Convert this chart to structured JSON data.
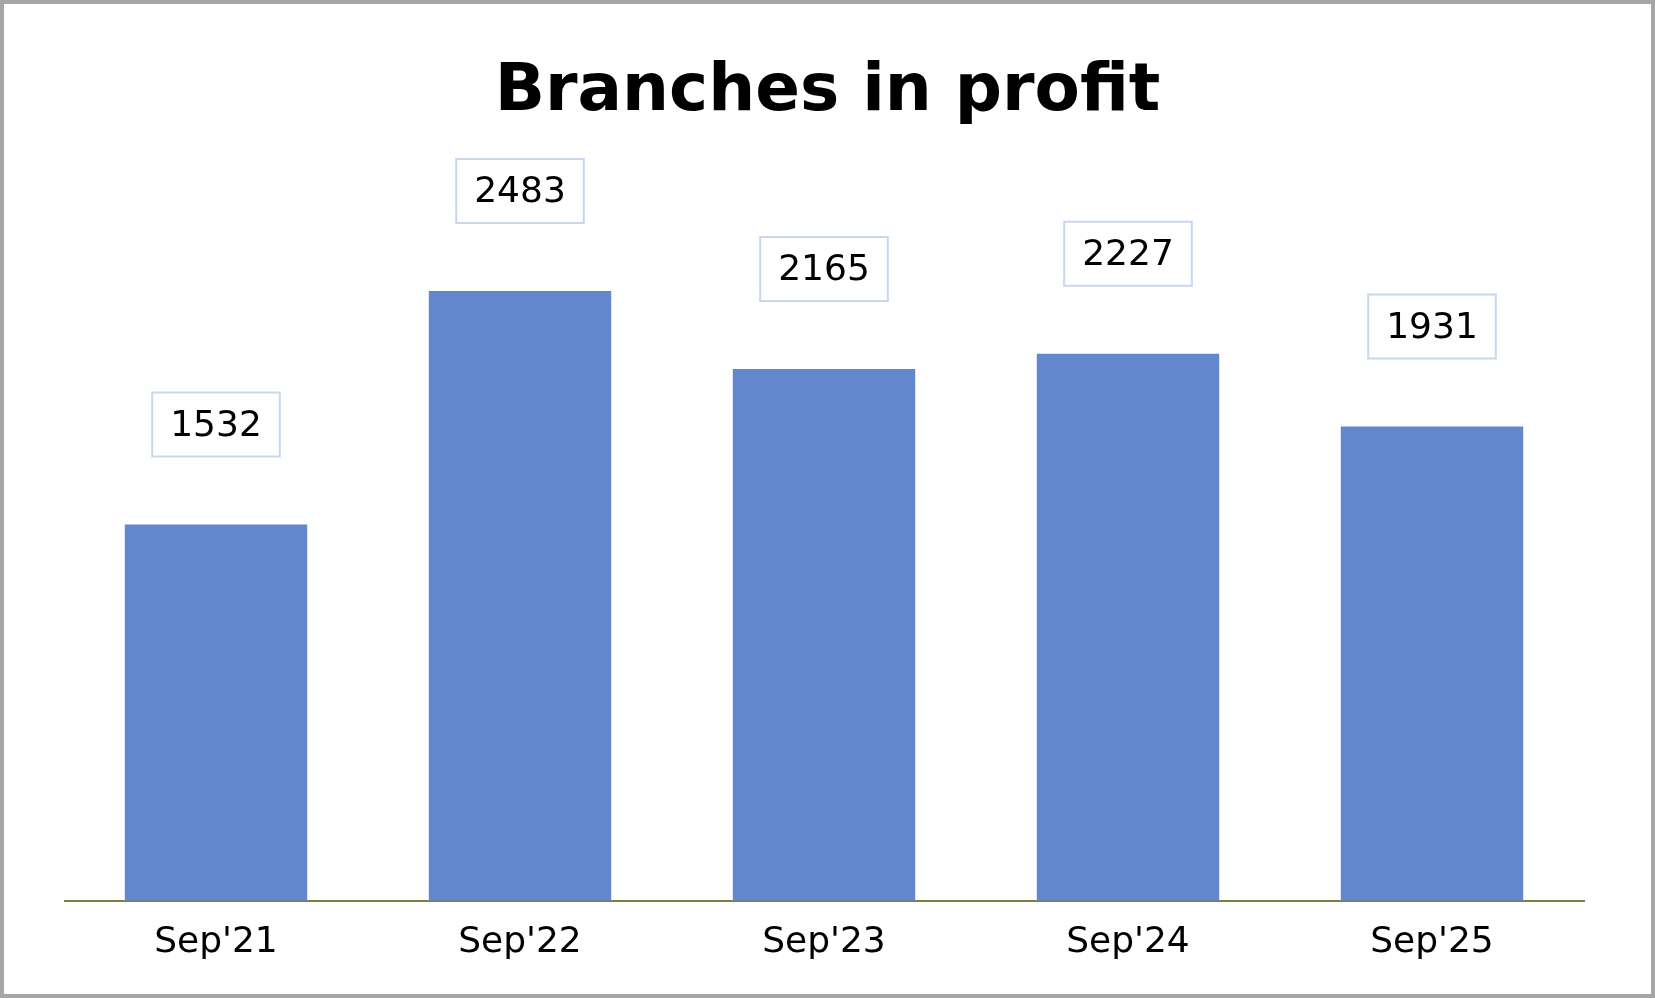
{
  "chart_data": {
    "type": "bar",
    "title": "Branches in profit",
    "categories": [
      "Sep'21",
      "Sep'22",
      "Sep'23",
      "Sep'24",
      "Sep'25"
    ],
    "values": [
      1532,
      2483,
      2165,
      2227,
      1931
    ],
    "color": "#6287cd",
    "data_labels": true,
    "grid": false,
    "legend": false
  }
}
